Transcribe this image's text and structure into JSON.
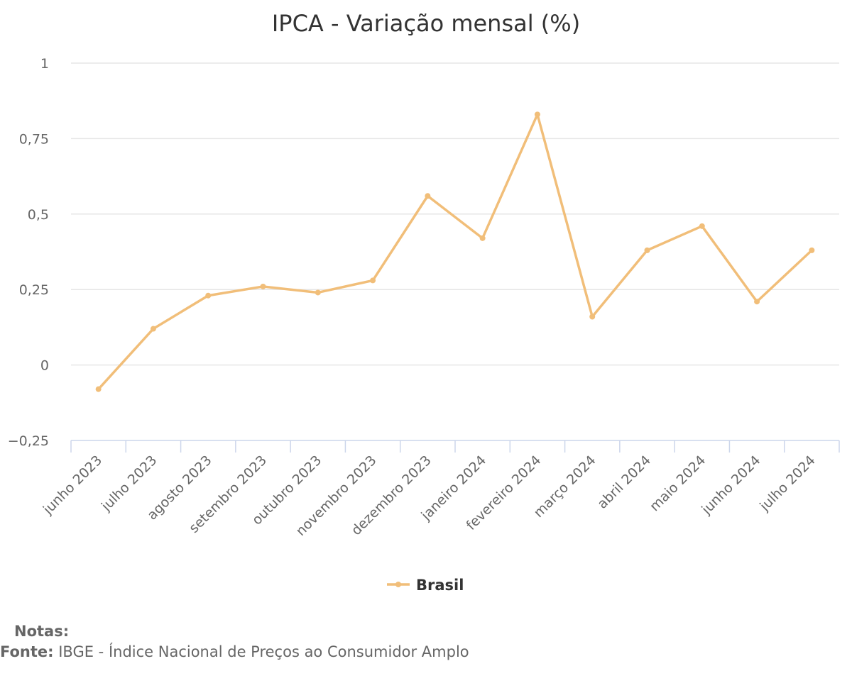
{
  "chart_data": {
    "type": "line",
    "title": "IPCA - Variação mensal (%)",
    "xlabel": "",
    "ylabel": "",
    "categories": [
      "junho 2023",
      "julho 2023",
      "agosto 2023",
      "setembro 2023",
      "outubro 2023",
      "novembro 2023",
      "dezembro 2023",
      "janeiro 2024",
      "fevereiro 2024",
      "março 2024",
      "abril 2024",
      "maio 2024",
      "junho 2024",
      "julho 2024"
    ],
    "series": [
      {
        "name": "Brasil",
        "color": "#f1be79",
        "values": [
          -0.08,
          0.12,
          0.23,
          0.26,
          0.24,
          0.28,
          0.56,
          0.42,
          0.83,
          0.16,
          0.38,
          0.46,
          0.21,
          0.38
        ]
      }
    ],
    "ylim": [
      -0.25,
      1
    ],
    "yticks": [
      1,
      0.75,
      0.5,
      0.25,
      0,
      -0.25
    ],
    "ytick_labels": [
      "1",
      "0,75",
      "0,5",
      "0,25",
      "0",
      "−0,25"
    ],
    "grid": true,
    "legend": "bottom-center"
  },
  "footer": {
    "notes_label": "Notas:",
    "source_label": "Fonte:",
    "source_text": " IBGE - Índice Nacional de Preços ao Consumidor Amplo"
  },
  "colors": {
    "series": "#f1be79",
    "grid": "#e6e6e6",
    "axis": "#ccd6eb",
    "text": "#666666",
    "title": "#333333"
  }
}
